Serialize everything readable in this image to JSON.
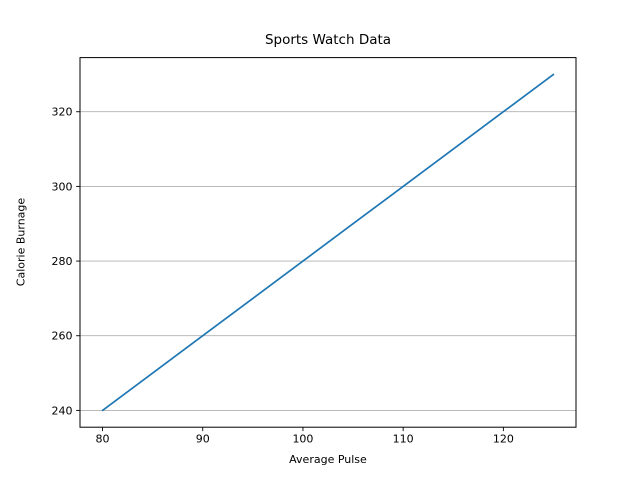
{
  "figure": {
    "background": "#ffffff"
  },
  "chart_data": {
    "type": "line",
    "title": "Sports Watch Data",
    "xlabel": "Average Pulse",
    "ylabel": "Calorie Burnage",
    "x": [
      80,
      85,
      90,
      95,
      100,
      105,
      110,
      115,
      120,
      125
    ],
    "y": [
      240,
      250,
      260,
      270,
      280,
      290,
      300,
      310,
      320,
      330
    ],
    "xticks": [
      80,
      90,
      100,
      110,
      120
    ],
    "yticks": [
      240,
      260,
      280,
      300,
      320
    ],
    "xlim": [
      77.75,
      127.25
    ],
    "ylim": [
      235.5,
      334.5
    ],
    "grid": "horizontal-only",
    "legend_position": "none",
    "colors": {
      "line": "#1f77b4",
      "grid": "#b0b0b0",
      "spine": "#000000",
      "text": "#000000"
    }
  }
}
